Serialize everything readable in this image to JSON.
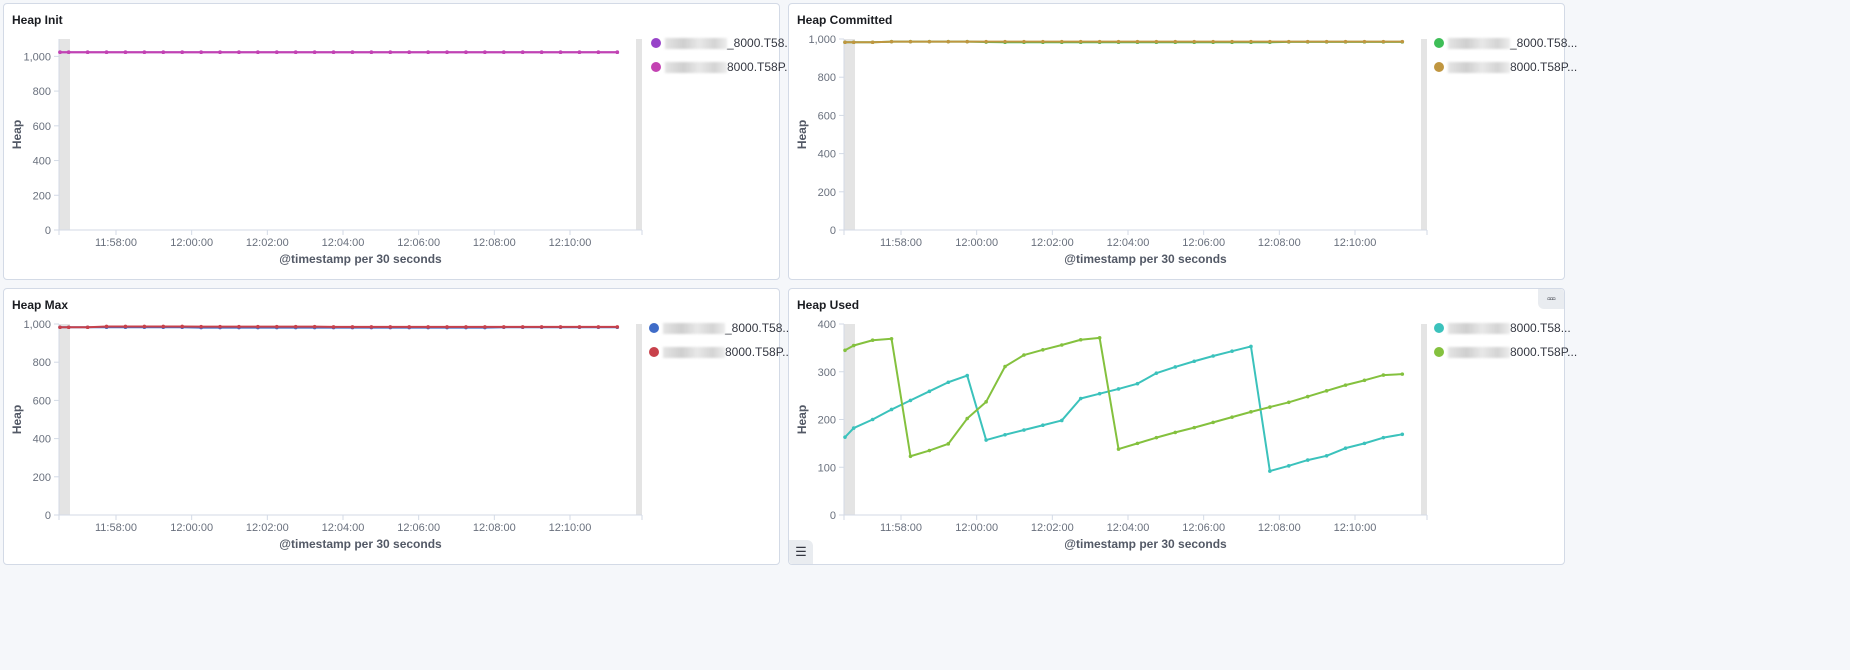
{
  "panels": [
    {
      "id": "heap-init",
      "title": "Heap Init",
      "y_axis_title": "Heap",
      "x_axis_title": "@timestamp per 30 seconds",
      "y_ticks": [
        "0",
        "200",
        "400",
        "600",
        "800",
        "1,000"
      ],
      "x_ticks": [
        "11:58:00",
        "12:00:00",
        "12:02:00",
        "12:04:00",
        "12:06:00",
        "12:08:00",
        "12:10:00"
      ],
      "legend": [
        {
          "suffix": "_8000.T58...",
          "color": "#9843c9"
        },
        {
          "suffix": "8000.T58P...",
          "color": "#c342b2"
        }
      ]
    },
    {
      "id": "heap-committed",
      "title": "Heap Committed",
      "y_axis_title": "Heap",
      "x_axis_title": "@timestamp per 30 seconds",
      "y_ticks": [
        "0",
        "200",
        "400",
        "600",
        "800",
        "1,000"
      ],
      "x_ticks": [
        "11:58:00",
        "12:00:00",
        "12:02:00",
        "12:04:00",
        "12:06:00",
        "12:08:00",
        "12:10:00"
      ],
      "legend": [
        {
          "suffix": "_8000.T58...",
          "color": "#3ebe57"
        },
        {
          "suffix": "8000.T58P...",
          "color": "#c09640"
        }
      ]
    },
    {
      "id": "heap-max",
      "title": "Heap Max",
      "y_axis_title": "Heap",
      "x_axis_title": "@timestamp per 30 seconds",
      "y_ticks": [
        "0",
        "200",
        "400",
        "600",
        "800",
        "1,000"
      ],
      "x_ticks": [
        "11:58:00",
        "12:00:00",
        "12:02:00",
        "12:04:00",
        "12:06:00",
        "12:08:00",
        "12:10:00"
      ],
      "legend": [
        {
          "suffix": "_8000.T58...",
          "color": "#3f6cc8"
        },
        {
          "suffix": "8000.T58P...",
          "color": "#c8414b"
        }
      ]
    },
    {
      "id": "heap-used",
      "title": "Heap Used",
      "y_axis_title": "Heap",
      "x_axis_title": "@timestamp per 30 seconds",
      "y_ticks": [
        "0",
        "100",
        "200",
        "300",
        "400"
      ],
      "x_ticks": [
        "11:58:00",
        "12:00:00",
        "12:02:00",
        "12:04:00",
        "12:06:00",
        "12:08:00",
        "12:10:00"
      ],
      "legend": [
        {
          "suffix": "8000.T58...",
          "color": "#3bc2bc"
        },
        {
          "suffix": "8000.T58P...",
          "color": "#84c13e"
        }
      ],
      "menu_icon": "ellipsis-icon",
      "legend_toggle_icon": "list-icon"
    }
  ],
  "chart_data": [
    {
      "type": "line",
      "title": "Heap Init",
      "xlabel": "@timestamp per 30 seconds",
      "ylabel": "Heap",
      "ylim": [
        0,
        1100
      ],
      "x": [
        "11:56:15",
        "11:56:45",
        "11:57:15",
        "11:57:45",
        "11:58:15",
        "11:58:45",
        "11:59:15",
        "11:59:45",
        "12:00:15",
        "12:00:45",
        "12:01:15",
        "12:01:45",
        "12:02:15",
        "12:02:45",
        "12:03:15",
        "12:03:45",
        "12:04:15",
        "12:04:45",
        "12:05:15",
        "12:05:45",
        "12:06:15",
        "12:06:45",
        "12:07:15",
        "12:07:45",
        "12:08:15",
        "12:08:45",
        "12:09:15",
        "12:09:45",
        "12:10:15",
        "12:10:45",
        "12:11:15"
      ],
      "series": [
        {
          "name": "_8000.T58...",
          "values": [
            1024,
            1024,
            1024,
            1024,
            1024,
            1024,
            1024,
            1024,
            1024,
            1024,
            1024,
            1024,
            1024,
            1024,
            1024,
            1024,
            1024,
            1024,
            1024,
            1024,
            1024,
            1024,
            1024,
            1024,
            1024,
            1024,
            1024,
            1024,
            1024,
            1024,
            1024
          ]
        },
        {
          "name": "8000.T58P...",
          "values": [
            1024,
            1024,
            1024,
            1024,
            1024,
            1024,
            1024,
            1024,
            1024,
            1024,
            1024,
            1024,
            1024,
            1024,
            1024,
            1024,
            1024,
            1024,
            1024,
            1024,
            1024,
            1024,
            1024,
            1024,
            1024,
            1024,
            1024,
            1024,
            1024,
            1024,
            1024
          ]
        }
      ],
      "grid": false,
      "legend_position": "right"
    },
    {
      "type": "line",
      "title": "Heap Committed",
      "xlabel": "@timestamp per 30 seconds",
      "ylabel": "Heap",
      "ylim": [
        0,
        1000
      ],
      "x": [
        "11:56:15",
        "11:56:45",
        "11:57:15",
        "11:57:45",
        "11:58:15",
        "11:58:45",
        "11:59:15",
        "11:59:45",
        "12:00:15",
        "12:00:45",
        "12:01:15",
        "12:01:45",
        "12:02:15",
        "12:02:45",
        "12:03:15",
        "12:03:45",
        "12:04:15",
        "12:04:45",
        "12:05:15",
        "12:05:45",
        "12:06:15",
        "12:06:45",
        "12:07:15",
        "12:07:45",
        "12:08:15",
        "12:08:45",
        "12:09:15",
        "12:09:45",
        "12:10:15",
        "12:10:45",
        "12:11:15"
      ],
      "series": [
        {
          "name": "_8000.T58...",
          "values": [
            983,
            983,
            983,
            986,
            986,
            986,
            986,
            986,
            984,
            983,
            983,
            983,
            983,
            983,
            983,
            983,
            983,
            983,
            983,
            983,
            983,
            983,
            983,
            983,
            985,
            985,
            985,
            985,
            985,
            985,
            985
          ]
        },
        {
          "name": "8000.T58P...",
          "values": [
            983,
            983,
            983,
            986,
            986,
            986,
            986,
            986,
            986,
            986,
            986,
            986,
            986,
            986,
            986,
            986,
            986,
            986,
            986,
            986,
            986,
            986,
            986,
            986,
            986,
            986,
            986,
            986,
            986,
            986,
            986
          ]
        }
      ],
      "grid": false,
      "legend_position": "right"
    },
    {
      "type": "line",
      "title": "Heap Max",
      "xlabel": "@timestamp per 30 seconds",
      "ylabel": "Heap",
      "ylim": [
        0,
        1000
      ],
      "x": [
        "11:56:15",
        "11:56:45",
        "11:57:15",
        "11:57:45",
        "11:58:15",
        "11:58:45",
        "11:59:15",
        "11:59:45",
        "12:00:15",
        "12:00:45",
        "12:01:15",
        "12:01:45",
        "12:02:15",
        "12:02:45",
        "12:03:15",
        "12:03:45",
        "12:04:15",
        "12:04:45",
        "12:05:15",
        "12:05:45",
        "12:06:15",
        "12:06:45",
        "12:07:15",
        "12:07:45",
        "12:08:15",
        "12:08:45",
        "12:09:15",
        "12:09:45",
        "12:10:15",
        "12:10:45",
        "12:11:15"
      ],
      "series": [
        {
          "name": "_8000.T58...",
          "values": [
            983,
            983,
            983,
            983,
            983,
            983,
            983,
            983,
            981,
            981,
            981,
            981,
            981,
            981,
            981,
            981,
            981,
            981,
            981,
            981,
            981,
            981,
            981,
            981,
            983,
            983,
            983,
            983,
            983,
            983,
            983
          ]
        },
        {
          "name": "8000.T58P...",
          "values": [
            983,
            983,
            983,
            987,
            987,
            987,
            987,
            987,
            986,
            986,
            986,
            986,
            986,
            986,
            986,
            985,
            985,
            985,
            985,
            985,
            985,
            985,
            985,
            985,
            985,
            985,
            985,
            985,
            985,
            985,
            985
          ]
        }
      ],
      "grid": false,
      "legend_position": "right"
    },
    {
      "type": "line",
      "title": "Heap Used",
      "xlabel": "@timestamp per 30 seconds",
      "ylabel": "Heap",
      "ylim": [
        0,
        400
      ],
      "x": [
        "11:56:15",
        "11:56:45",
        "11:57:15",
        "11:57:45",
        "11:58:15",
        "11:58:45",
        "11:59:15",
        "11:59:45",
        "12:00:15",
        "12:00:45",
        "12:01:15",
        "12:01:45",
        "12:02:15",
        "12:02:45",
        "12:03:15",
        "12:03:45",
        "12:04:15",
        "12:04:45",
        "12:05:15",
        "12:05:45",
        "12:06:15",
        "12:06:45",
        "12:07:15",
        "12:07:45",
        "12:08:15",
        "12:08:45",
        "12:09:15",
        "12:09:45",
        "12:10:15",
        "12:10:45",
        "12:11:15"
      ],
      "series": [
        {
          "name": "8000.T58...",
          "values": [
            163,
            182,
            200,
            221,
            240,
            259,
            278,
            292,
            157,
            168,
            178,
            188,
            198,
            244,
            254,
            264,
            275,
            297,
            310,
            322,
            333,
            343,
            353,
            92,
            103,
            115,
            124,
            140,
            150,
            162,
            169
          ]
        },
        {
          "name": "8000.T58P...",
          "values": [
            345,
            355,
            366,
            369,
            123,
            135,
            149,
            202,
            237,
            311,
            335,
            346,
            356,
            367,
            371,
            138,
            150,
            162,
            173,
            183,
            194,
            205,
            216,
            226,
            236,
            248,
            260,
            272,
            282,
            293,
            295
          ]
        }
      ],
      "grid": false,
      "legend_position": "right"
    }
  ]
}
